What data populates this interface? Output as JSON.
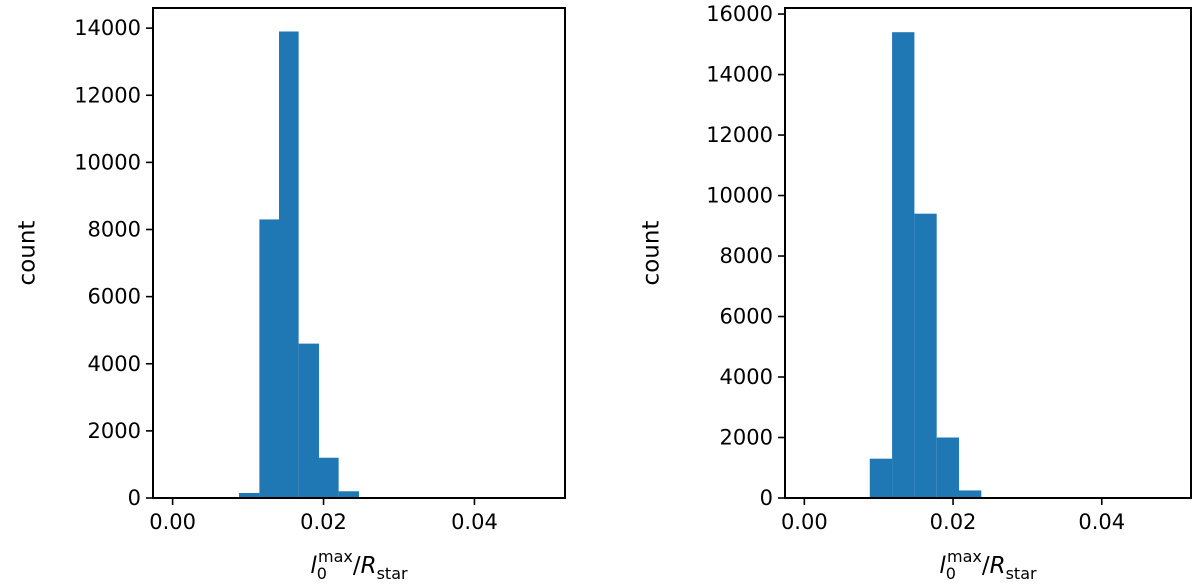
{
  "chart_data": [
    {
      "type": "bar",
      "xlabel_parts": {
        "base": "l",
        "sub": "0",
        "sup": "max",
        "sep": "/",
        "base2": "R",
        "sub2": "star"
      },
      "ylabel": "count",
      "xlim": [
        -0.0026,
        0.052
      ],
      "ylim": [
        0,
        14600
      ],
      "xticks": [
        0.0,
        0.02,
        0.04
      ],
      "xtick_labels": [
        "0.00",
        "0.02",
        "0.04"
      ],
      "yticks": [
        0,
        2000,
        4000,
        6000,
        8000,
        10000,
        12000,
        14000
      ],
      "ytick_labels": [
        "0",
        "2000",
        "4000",
        "6000",
        "8000",
        "10000",
        "12000",
        "14000"
      ],
      "bins": [
        {
          "x0": 0.0088,
          "x1": 0.0115,
          "value": 150
        },
        {
          "x0": 0.0115,
          "x1": 0.0141,
          "value": 8300
        },
        {
          "x0": 0.0141,
          "x1": 0.0167,
          "value": 13900
        },
        {
          "x0": 0.0167,
          "x1": 0.0194,
          "value": 4600
        },
        {
          "x0": 0.0194,
          "x1": 0.022,
          "value": 1200
        },
        {
          "x0": 0.022,
          "x1": 0.0247,
          "value": 200
        }
      ],
      "color": "#1f77b4",
      "grid": false
    },
    {
      "type": "bar",
      "xlabel_parts": {
        "base": "l",
        "sub": "0",
        "sup": "max",
        "sep": "/",
        "base2": "R",
        "sub2": "star"
      },
      "ylabel": "count",
      "xlim": [
        -0.0026,
        0.052
      ],
      "ylim": [
        0,
        16200
      ],
      "xticks": [
        0.0,
        0.02,
        0.04
      ],
      "xtick_labels": [
        "0.00",
        "0.02",
        "0.04"
      ],
      "yticks": [
        0,
        2000,
        4000,
        6000,
        8000,
        10000,
        12000,
        14000,
        16000
      ],
      "ytick_labels": [
        "0",
        "2000",
        "4000",
        "6000",
        "8000",
        "10000",
        "12000",
        "14000",
        "16000"
      ],
      "bins": [
        {
          "x0": 0.0088,
          "x1": 0.0118,
          "value": 1300
        },
        {
          "x0": 0.0118,
          "x1": 0.0148,
          "value": 15400
        },
        {
          "x0": 0.0148,
          "x1": 0.0178,
          "value": 9400
        },
        {
          "x0": 0.0178,
          "x1": 0.0208,
          "value": 2000
        },
        {
          "x0": 0.0208,
          "x1": 0.0238,
          "value": 250
        }
      ],
      "color": "#1f77b4",
      "grid": false
    }
  ]
}
